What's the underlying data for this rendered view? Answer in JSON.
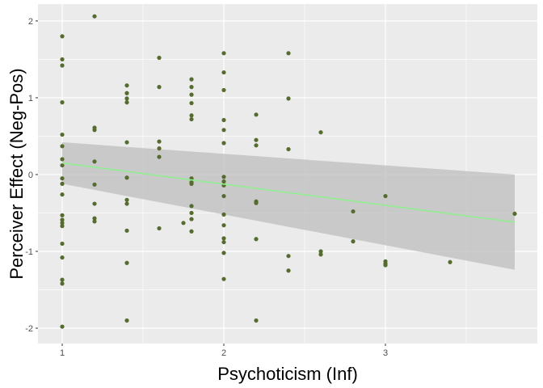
{
  "chart_data": {
    "type": "scatter",
    "title": "",
    "xlabel": "Psychoticism (Inf)",
    "ylabel": "Perceiver Effect (Neg-Pos)",
    "xlim": [
      0.85,
      3.94
    ],
    "ylim": [
      -2.2,
      2.22
    ],
    "x_ticks": [
      1,
      2,
      3
    ],
    "y_ticks": [
      -2,
      -1,
      0,
      1,
      2
    ],
    "grid": true,
    "point_color": "#556B2F",
    "fit_line_color": "#90EE90",
    "ribbon_color": "#BEBEBE",
    "panel_color": "#EBEBEB",
    "fit": {
      "x": [
        1.0,
        3.8
      ],
      "y": [
        0.15,
        -0.62
      ],
      "upper": [
        0.42,
        0.0
      ],
      "lower": [
        -0.12,
        -1.24
      ]
    },
    "points": [
      [
        1.0,
        1.8
      ],
      [
        1.0,
        1.5
      ],
      [
        1.0,
        1.42
      ],
      [
        1.0,
        0.94
      ],
      [
        1.0,
        0.52
      ],
      [
        1.0,
        0.37
      ],
      [
        1.0,
        0.2
      ],
      [
        1.0,
        0.12
      ],
      [
        1.0,
        -0.05
      ],
      [
        1.0,
        -0.12
      ],
      [
        1.0,
        -0.26
      ],
      [
        1.0,
        -0.53
      ],
      [
        1.0,
        -0.59
      ],
      [
        1.0,
        -0.63
      ],
      [
        1.0,
        -0.67
      ],
      [
        1.0,
        -0.9
      ],
      [
        1.0,
        -1.08
      ],
      [
        1.0,
        -1.37
      ],
      [
        1.0,
        -1.42
      ],
      [
        1.0,
        -1.98
      ],
      [
        1.2,
        2.06
      ],
      [
        1.2,
        0.61
      ],
      [
        1.2,
        0.58
      ],
      [
        1.2,
        0.17
      ],
      [
        1.2,
        -0.13
      ],
      [
        1.2,
        -0.38
      ],
      [
        1.2,
        -0.57
      ],
      [
        1.2,
        -0.61
      ],
      [
        1.4,
        1.16
      ],
      [
        1.4,
        1.06
      ],
      [
        1.4,
        0.99
      ],
      [
        1.4,
        0.94
      ],
      [
        1.4,
        0.42
      ],
      [
        1.4,
        -0.04
      ],
      [
        1.4,
        -0.33
      ],
      [
        1.4,
        -0.38
      ],
      [
        1.4,
        -0.73
      ],
      [
        1.4,
        -1.15
      ],
      [
        1.4,
        -1.9
      ],
      [
        1.6,
        1.52
      ],
      [
        1.6,
        1.14
      ],
      [
        1.6,
        0.43
      ],
      [
        1.6,
        0.34
      ],
      [
        1.6,
        0.23
      ],
      [
        1.6,
        -0.7
      ],
      [
        1.75,
        -0.63
      ],
      [
        1.8,
        1.24
      ],
      [
        1.8,
        1.14
      ],
      [
        1.8,
        1.04
      ],
      [
        1.8,
        0.93
      ],
      [
        1.8,
        0.77
      ],
      [
        1.8,
        0.72
      ],
      [
        1.8,
        -0.05
      ],
      [
        1.8,
        -0.1
      ],
      [
        1.8,
        -0.12
      ],
      [
        1.8,
        -0.41
      ],
      [
        1.8,
        -0.5
      ],
      [
        1.8,
        -0.58
      ],
      [
        1.8,
        -0.74
      ],
      [
        2.0,
        1.58
      ],
      [
        2.0,
        1.33
      ],
      [
        2.0,
        1.1
      ],
      [
        2.0,
        0.71
      ],
      [
        2.0,
        0.58
      ],
      [
        2.0,
        0.41
      ],
      [
        2.0,
        -0.03
      ],
      [
        2.0,
        -0.09
      ],
      [
        2.0,
        -0.14
      ],
      [
        2.0,
        -0.28
      ],
      [
        2.0,
        -0.52
      ],
      [
        2.0,
        -0.66
      ],
      [
        2.0,
        -0.83
      ],
      [
        2.0,
        -0.88
      ],
      [
        2.0,
        -1.02
      ],
      [
        2.0,
        -1.36
      ],
      [
        2.2,
        0.78
      ],
      [
        2.2,
        0.45
      ],
      [
        2.2,
        0.38
      ],
      [
        2.2,
        -0.35
      ],
      [
        2.2,
        -0.37
      ],
      [
        2.2,
        -0.84
      ],
      [
        2.2,
        -1.9
      ],
      [
        2.4,
        1.58
      ],
      [
        2.4,
        0.99
      ],
      [
        2.4,
        0.33
      ],
      [
        2.4,
        -1.06
      ],
      [
        2.4,
        -1.25
      ],
      [
        2.6,
        0.55
      ],
      [
        2.6,
        -1.0
      ],
      [
        2.6,
        -1.04
      ],
      [
        2.8,
        -0.48
      ],
      [
        2.8,
        -0.87
      ],
      [
        3.0,
        -0.28
      ],
      [
        3.0,
        -1.13
      ],
      [
        3.0,
        -1.16
      ],
      [
        3.0,
        -1.18
      ],
      [
        3.4,
        -1.14
      ],
      [
        3.8,
        -0.51
      ]
    ]
  }
}
